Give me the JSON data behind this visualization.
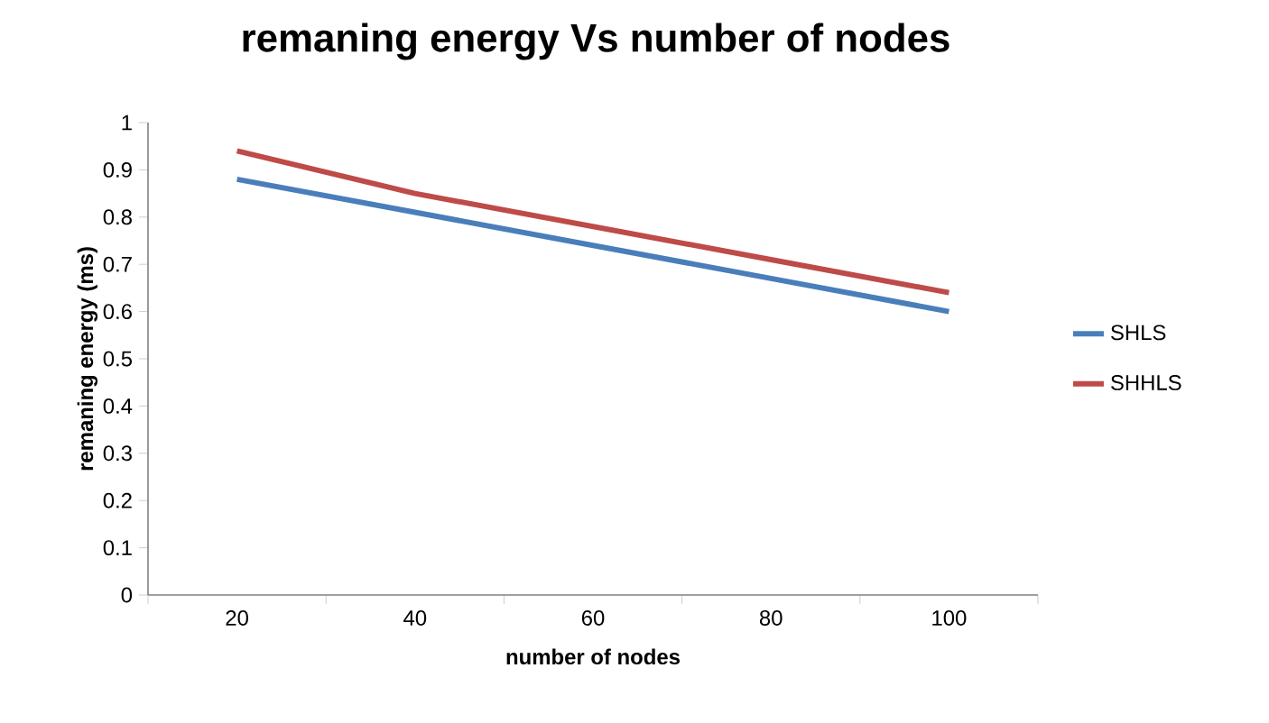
{
  "chart_data": {
    "type": "line",
    "title": "remaning energy Vs number of nodes",
    "xlabel": "number of nodes",
    "ylabel": "remaning energy (ms)",
    "categories": [
      "20",
      "40",
      "60",
      "80",
      "100"
    ],
    "series": [
      {
        "name": "SHLS",
        "color": "#4a7ebb",
        "values": [
          0.88,
          0.81,
          0.74,
          0.67,
          0.6
        ]
      },
      {
        "name": "SHHLS",
        "color": "#be4b48",
        "values": [
          0.94,
          0.85,
          0.78,
          0.71,
          0.64
        ]
      }
    ],
    "ylim": [
      0,
      1
    ],
    "yticks": [
      0,
      0.1,
      0.2,
      0.3,
      0.4,
      0.5,
      0.6,
      0.7,
      0.8,
      0.9,
      1
    ],
    "grid": false,
    "legend": "right",
    "marker": "none",
    "line_style": "solid"
  }
}
